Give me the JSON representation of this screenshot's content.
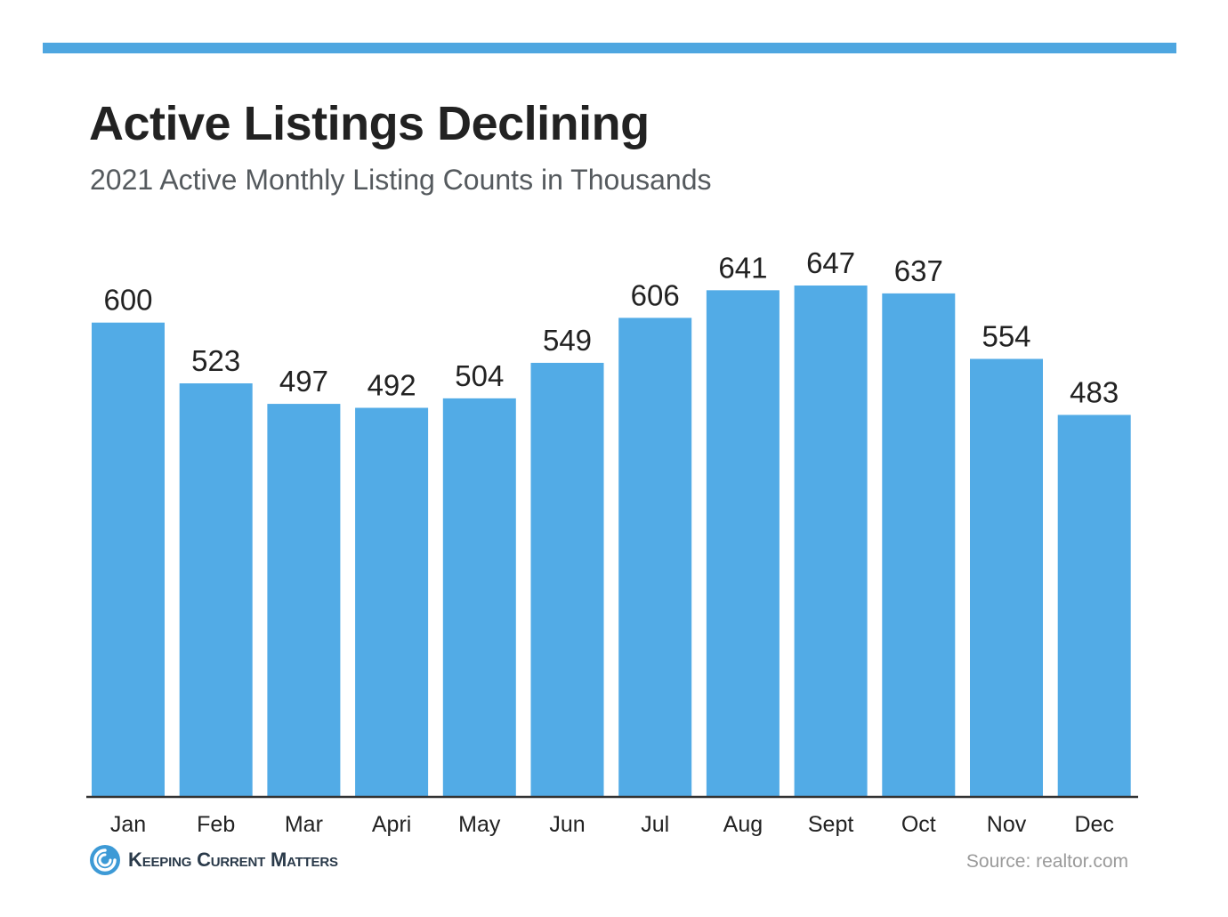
{
  "header": {
    "title": "Active Listings Declining",
    "subtitle": "2021 Active Monthly Listing Counts in Thousands"
  },
  "colors": {
    "accent": "#4ea6e0",
    "bar": "#52abe6",
    "axis": "#333333"
  },
  "chart_data": {
    "type": "bar",
    "title": "Active Listings Declining",
    "subtitle": "2021 Active Monthly Listing Counts in Thousands",
    "xlabel": "",
    "ylabel": "",
    "categories": [
      "Jan",
      "Feb",
      "Mar",
      "Apri",
      "May",
      "Jun",
      "Jul",
      "Aug",
      "Sept",
      "Oct",
      "Nov",
      "Dec"
    ],
    "values": [
      600,
      523,
      497,
      492,
      504,
      549,
      606,
      641,
      647,
      637,
      554,
      483
    ],
    "ylim": [
      0,
      647
    ],
    "grid": false,
    "legend": "none"
  },
  "footer": {
    "brand": "Keeping Current Matters",
    "brand_icon": "spiral-logo-icon",
    "source": "Source: realtor.com"
  }
}
